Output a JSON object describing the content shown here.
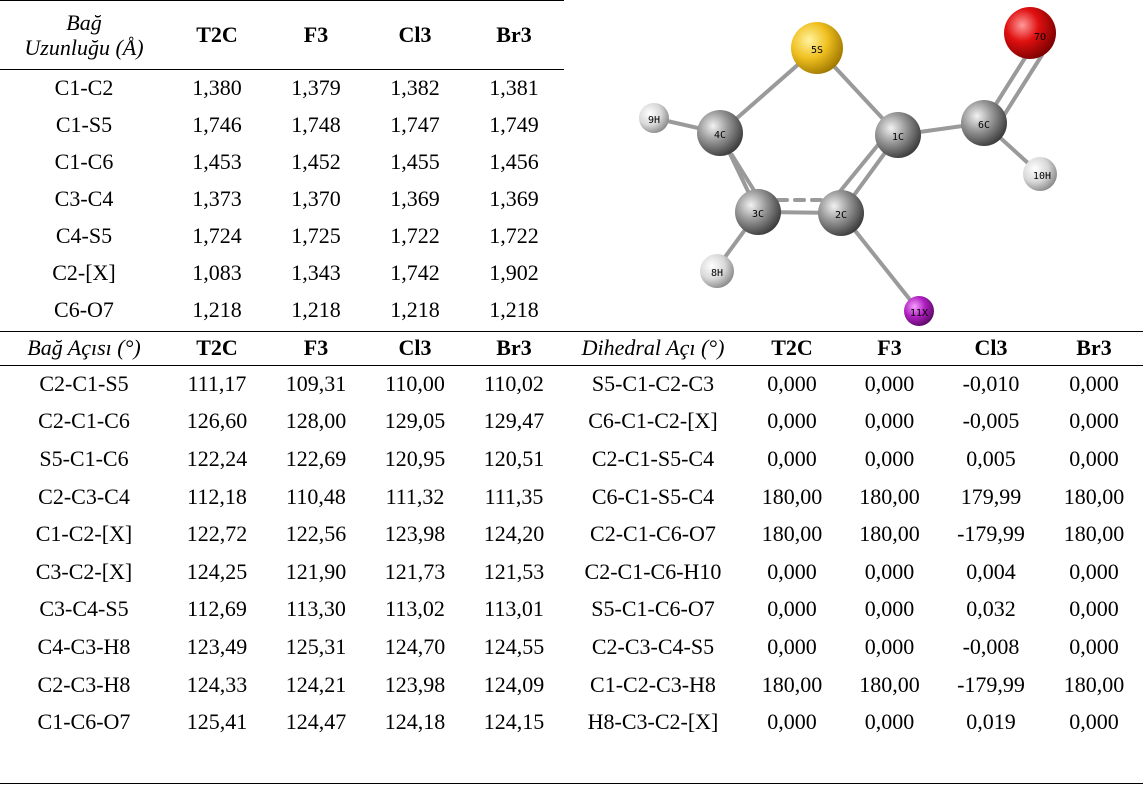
{
  "bond_table": {
    "header_line1": "Bağ",
    "header_line2": "Uzunluğu (Å)",
    "columns": [
      "T2C",
      "F3",
      "Cl3",
      "Br3"
    ],
    "rows": [
      {
        "label": "C1-C2",
        "values": [
          "1,380",
          "1,379",
          "1,382",
          "1,381"
        ]
      },
      {
        "label": "C1-S5",
        "values": [
          "1,746",
          "1,748",
          "1,747",
          "1,749"
        ]
      },
      {
        "label": "C1-C6",
        "values": [
          "1,453",
          "1,452",
          "1,455",
          "1,456"
        ]
      },
      {
        "label": "C3-C4",
        "values": [
          "1,373",
          "1,370",
          "1,369",
          "1,369"
        ]
      },
      {
        "label": "C4-S5",
        "values": [
          "1,724",
          "1,725",
          "1,722",
          "1,722"
        ]
      },
      {
        "label": "C2-[X]",
        "values": [
          "1,083",
          "1,343",
          "1,742",
          "1,902"
        ]
      },
      {
        "label": "C6-O7",
        "values": [
          "1,218",
          "1,218",
          "1,218",
          "1,218"
        ]
      }
    ]
  },
  "angle_table": {
    "angle_header": "Bağ Açısı (°)",
    "dihedral_header": "Dihedral Açı (°)",
    "columns": [
      "T2C",
      "F3",
      "Cl3",
      "Br3"
    ],
    "rows": [
      {
        "angle": "C2-C1-S5",
        "a": [
          "111,17",
          "109,31",
          "110,00",
          "110,02"
        ],
        "dihedral": "S5-C1-C2-C3",
        "d": [
          "0,000",
          "0,000",
          "-0,010",
          "0,000"
        ]
      },
      {
        "angle": "C2-C1-C6",
        "a": [
          "126,60",
          "128,00",
          "129,05",
          "129,47"
        ],
        "dihedral": "C6-C1-C2-[X]",
        "d": [
          "0,000",
          "0,000",
          "-0,005",
          "0,000"
        ]
      },
      {
        "angle": "S5-C1-C6",
        "a": [
          "122,24",
          "122,69",
          "120,95",
          "120,51"
        ],
        "dihedral": "C2-C1-S5-C4",
        "d": [
          "0,000",
          "0,000",
          "0,005",
          "0,000"
        ]
      },
      {
        "angle": "C2-C3-C4",
        "a": [
          "112,18",
          "110,48",
          "111,32",
          "111,35"
        ],
        "dihedral": "C6-C1-S5-C4",
        "d": [
          "180,00",
          "180,00",
          "179,99",
          "180,00"
        ]
      },
      {
        "angle": "C1-C2-[X]",
        "a": [
          "122,72",
          "122,56",
          "123,98",
          "124,20"
        ],
        "dihedral": "C2-C1-C6-O7",
        "d": [
          "180,00",
          "180,00",
          "-179,99",
          "180,00"
        ]
      },
      {
        "angle": "C3-C2-[X]",
        "a": [
          "124,25",
          "121,90",
          "121,73",
          "121,53"
        ],
        "dihedral": "C2-C1-C6-H10",
        "d": [
          "0,000",
          "0,000",
          "0,004",
          "0,000"
        ]
      },
      {
        "angle": "C3-C4-S5",
        "a": [
          "112,69",
          "113,30",
          "113,02",
          "113,01"
        ],
        "dihedral": "S5-C1-C6-O7",
        "d": [
          "0,000",
          "0,000",
          "0,032",
          "0,000"
        ]
      },
      {
        "angle": "C4-C3-H8",
        "a": [
          "123,49",
          "125,31",
          "124,70",
          "124,55"
        ],
        "dihedral": "C2-C3-C4-S5",
        "d": [
          "0,000",
          "0,000",
          "-0,008",
          "0,000"
        ]
      },
      {
        "angle": "C2-C3-H8",
        "a": [
          "124,33",
          "124,21",
          "123,98",
          "124,09"
        ],
        "dihedral": "C1-C2-C3-H8",
        "d": [
          "180,00",
          "180,00",
          "-179,99",
          "180,00"
        ]
      },
      {
        "angle": "C1-C6-O7",
        "a": [
          "125,41",
          "124,47",
          "124,18",
          "124,15"
        ],
        "dihedral": "H8-C3-C2-[X]",
        "d": [
          "0,000",
          "0,000",
          "0,019",
          "0,000"
        ]
      }
    ]
  },
  "molecule": {
    "atoms": [
      {
        "label": "5S",
        "color": "#f0c020"
      },
      {
        "label": "4C",
        "color": "#8a8a8a"
      },
      {
        "label": "1C",
        "color": "#8a8a8a"
      },
      {
        "label": "3C",
        "color": "#8a8a8a"
      },
      {
        "label": "2C",
        "color": "#8a8a8a"
      },
      {
        "label": "6C",
        "color": "#8a8a8a"
      },
      {
        "label": "7O",
        "color": "#e01010"
      },
      {
        "label": "9H",
        "color": "#d8d8d8"
      },
      {
        "label": "8H",
        "color": "#d8d8d8"
      },
      {
        "label": "10H",
        "color": "#d8d8d8"
      },
      {
        "label": "11X",
        "color": "#b020c0"
      }
    ]
  }
}
